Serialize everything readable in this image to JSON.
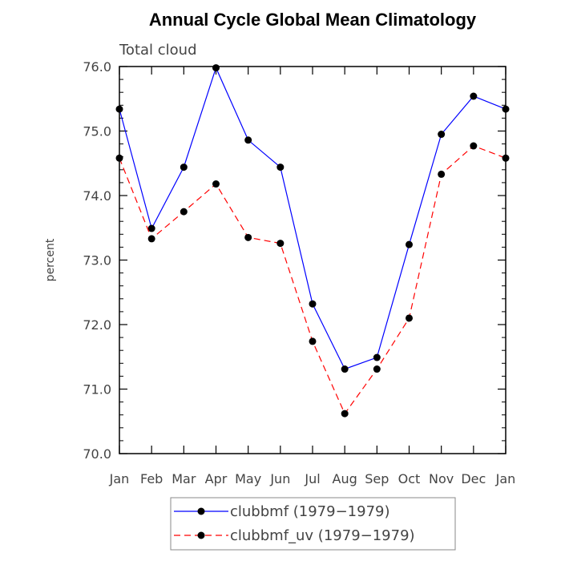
{
  "chart_data": {
    "type": "line",
    "title": "Annual Cycle Global Mean Climatology",
    "subtitle": "Total cloud",
    "ylabel": "percent",
    "xlabel": "",
    "categories": [
      "Jan",
      "Feb",
      "Mar",
      "Apr",
      "May",
      "Jun",
      "Jul",
      "Aug",
      "Sep",
      "Oct",
      "Nov",
      "Dec",
      "Jan"
    ],
    "ylim": [
      70.0,
      76.0
    ],
    "yticks": [
      "70.0",
      "71.0",
      "72.0",
      "73.0",
      "74.0",
      "75.0",
      "76.0"
    ],
    "grid": false,
    "legend_position": "bottom",
    "series": [
      {
        "name": "clubbmf (1979−1979)",
        "color": "#0000ff",
        "line_style": "solid",
        "values": [
          75.34,
          73.49,
          74.44,
          75.98,
          74.86,
          74.44,
          72.32,
          71.31,
          71.49,
          73.24,
          74.95,
          75.54,
          75.34
        ]
      },
      {
        "name": "clubbmf_uv (1979−1979)",
        "color": "#ff0000",
        "line_style": "dashed",
        "values": [
          74.58,
          73.33,
          73.75,
          74.18,
          73.35,
          73.26,
          71.74,
          70.62,
          71.31,
          72.1,
          74.33,
          74.77,
          74.58
        ]
      }
    ]
  }
}
